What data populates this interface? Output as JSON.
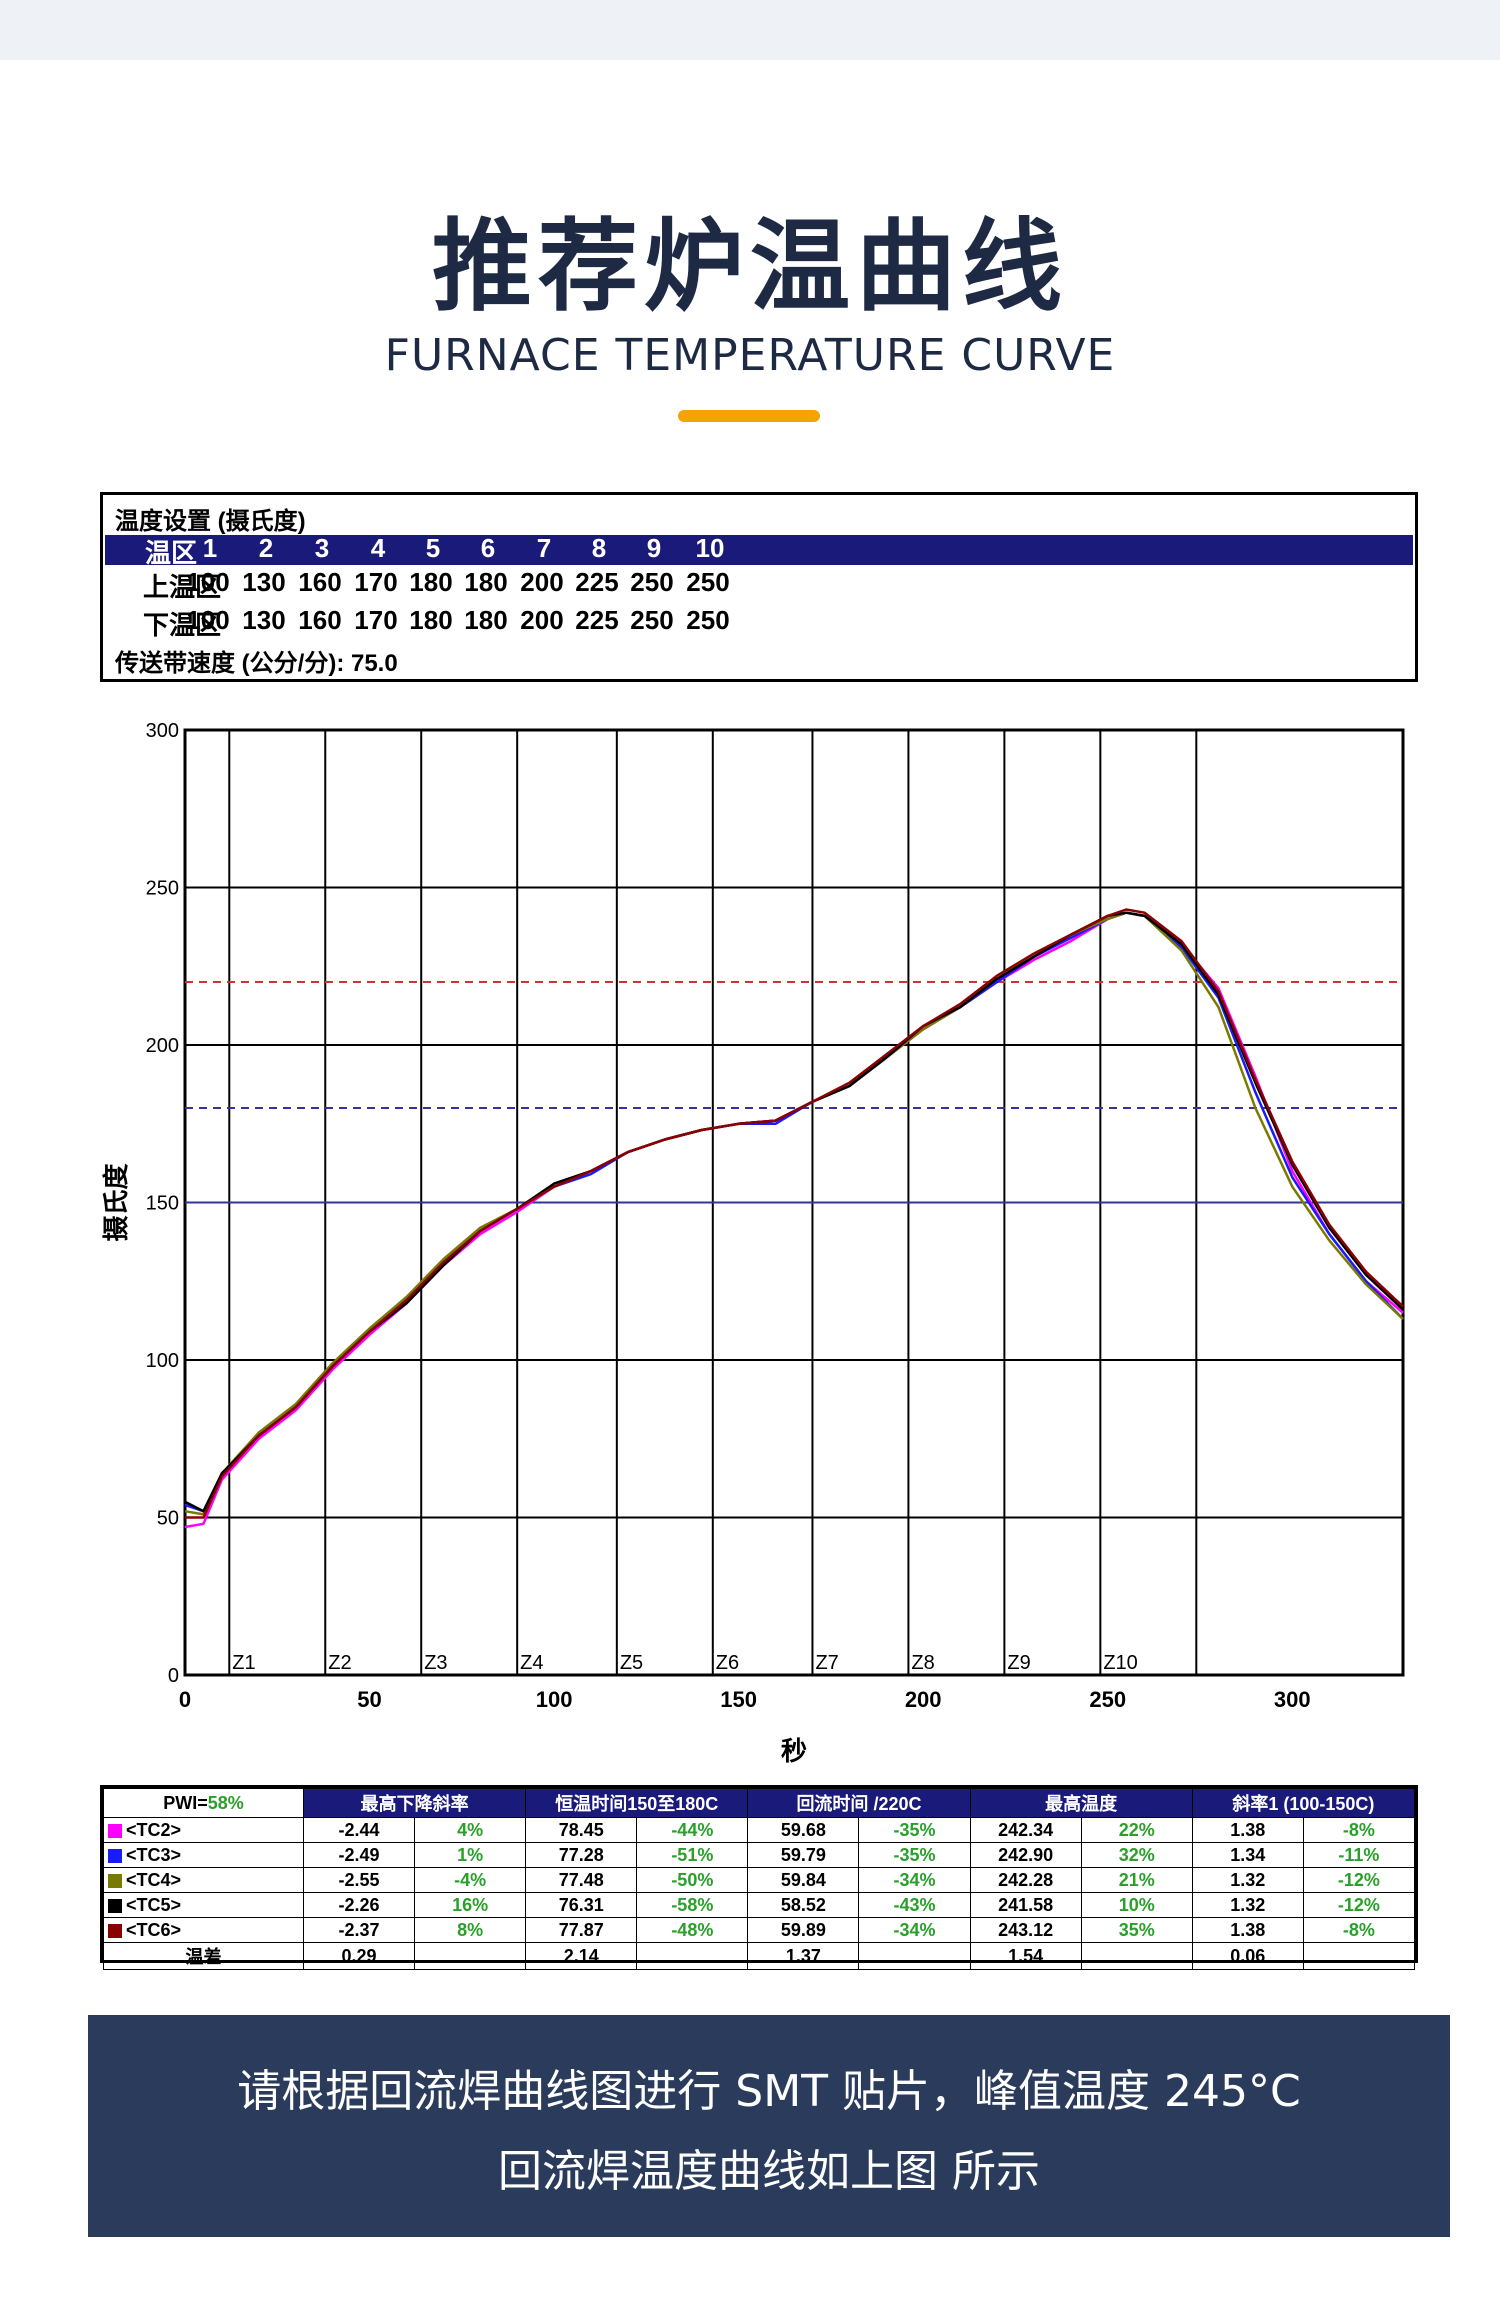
{
  "header": {
    "title_cn": "推荐炉温曲线",
    "title_en": "FURNACE TEMPERATURE CURVE"
  },
  "settings": {
    "title": "温度设置 (摄氏度)",
    "zone_label": "温区",
    "zones": [
      "1",
      "2",
      "3",
      "4",
      "5",
      "6",
      "7",
      "8",
      "9",
      "10"
    ],
    "upper_label": "上温区",
    "upper": [
      "100",
      "130",
      "160",
      "170",
      "180",
      "180",
      "200",
      "225",
      "250",
      "250"
    ],
    "lower_label": "下温区",
    "lower": [
      "100",
      "130",
      "160",
      "170",
      "180",
      "180",
      "200",
      "225",
      "250",
      "250"
    ],
    "speed_text": "传送带速度 (公分/分):   75.0"
  },
  "chart_data": {
    "type": "line",
    "xlabel": "秒",
    "ylabel": "摄氏度",
    "xlim": [
      0,
      330
    ],
    "ylim": [
      0,
      300
    ],
    "x_ticks": [
      0,
      50,
      100,
      150,
      200,
      250,
      300
    ],
    "y_ticks": [
      0,
      50,
      100,
      150,
      200,
      250,
      300
    ],
    "zone_labels": [
      "Z1",
      "Z2",
      "Z3",
      "Z4",
      "Z5",
      "Z6",
      "Z7",
      "Z8",
      "Z9",
      "Z10"
    ],
    "zone_boundaries": [
      12,
      38,
      64,
      90,
      117,
      143,
      170,
      196,
      222,
      248,
      274
    ],
    "reference_lines": [
      {
        "y": 220,
        "color": "#cc3333",
        "style": "dashed"
      },
      {
        "y": 180,
        "color": "#333399",
        "style": "dashed"
      },
      {
        "y": 150,
        "color": "#333399",
        "style": "solid"
      }
    ],
    "x": [
      0,
      5,
      10,
      20,
      30,
      40,
      50,
      60,
      70,
      80,
      90,
      100,
      110,
      120,
      130,
      140,
      150,
      160,
      170,
      180,
      190,
      200,
      210,
      220,
      230,
      240,
      250,
      255,
      260,
      270,
      280,
      290,
      300,
      310,
      320,
      330
    ],
    "series": [
      {
        "name": "<TC2>",
        "color": "#ff00ff",
        "values": [
          47,
          48,
          62,
          75,
          84,
          97,
          108,
          118,
          130,
          140,
          147,
          155,
          160,
          166,
          170,
          173,
          175,
          176,
          182,
          187,
          196,
          205,
          212,
          220,
          227,
          233,
          240,
          242,
          241,
          232,
          218,
          190,
          160,
          140,
          125,
          115
        ]
      },
      {
        "name": "<TC3>",
        "color": "#1a1aff",
        "values": [
          54,
          52,
          64,
          76,
          85,
          98,
          109,
          118,
          131,
          141,
          148,
          155,
          159,
          166,
          170,
          173,
          175,
          175,
          182,
          187,
          197,
          206,
          212,
          220,
          228,
          234,
          240,
          242,
          241,
          231,
          215,
          185,
          158,
          140,
          125,
          113
        ]
      },
      {
        "name": "<TC4>",
        "color": "#7a7a00",
        "values": [
          52,
          51,
          64,
          77,
          86,
          99,
          110,
          120,
          132,
          142,
          148,
          155,
          160,
          166,
          170,
          173,
          175,
          176,
          182,
          187,
          196,
          205,
          212,
          221,
          229,
          235,
          240,
          242,
          241,
          230,
          212,
          180,
          155,
          138,
          124,
          113
        ]
      },
      {
        "name": "<TC5>",
        "color": "#000000",
        "values": [
          55,
          52,
          64,
          76,
          85,
          98,
          109,
          118,
          130,
          141,
          148,
          156,
          160,
          166,
          170,
          173,
          175,
          176,
          182,
          187,
          196,
          206,
          212,
          221,
          228,
          235,
          241,
          242,
          241,
          232,
          216,
          188,
          162,
          142,
          127,
          116
        ]
      },
      {
        "name": "<TC6>",
        "color": "#8b0000",
        "values": [
          50,
          50,
          63,
          76,
          85,
          98,
          109,
          119,
          131,
          141,
          148,
          155,
          160,
          166,
          170,
          173,
          175,
          176,
          182,
          188,
          197,
          206,
          213,
          222,
          229,
          235,
          241,
          243,
          242,
          233,
          217,
          189,
          163,
          143,
          128,
          117
        ]
      }
    ]
  },
  "stats": {
    "pwi_label": "PWI=",
    "pwi_value": "58%",
    "headers": [
      "最高下降斜率",
      "恒温时间150至180C",
      "回流时间 /220C",
      "最高温度",
      "斜率1 (100-150C)"
    ],
    "rows": [
      {
        "tc": "<TC2>",
        "color": "#ff00ff",
        "v": [
          "-2.44",
          "4%",
          "78.45",
          "-44%",
          "59.68",
          "-35%",
          "242.34",
          "22%",
          "1.38",
          "-8%"
        ]
      },
      {
        "tc": "<TC3>",
        "color": "#1a1aff",
        "v": [
          "-2.49",
          "1%",
          "77.28",
          "-51%",
          "59.79",
          "-35%",
          "242.90",
          "32%",
          "1.34",
          "-11%"
        ]
      },
      {
        "tc": "<TC4>",
        "color": "#7a7a00",
        "v": [
          "-2.55",
          "-4%",
          "77.48",
          "-50%",
          "59.84",
          "-34%",
          "242.28",
          "21%",
          "1.32",
          "-12%"
        ]
      },
      {
        "tc": "<TC5>",
        "color": "#000000",
        "v": [
          "-2.26",
          "16%",
          "76.31",
          "-58%",
          "58.52",
          "-43%",
          "241.58",
          "10%",
          "1.32",
          "-12%"
        ]
      },
      {
        "tc": "<TC6>",
        "color": "#8b0000",
        "v": [
          "-2.37",
          "8%",
          "77.87",
          "-48%",
          "59.89",
          "-34%",
          "243.12",
          "35%",
          "1.38",
          "-8%"
        ]
      }
    ],
    "diff_label": "温差",
    "diff": [
      "0.29",
      "2.14",
      "1.37",
      "1.54",
      "0.06"
    ]
  },
  "footer": {
    "line1": "请根据回流焊曲线图进行 SMT 贴片，峰值温度 245°C",
    "line2": "回流焊温度曲线如上图 所示"
  }
}
